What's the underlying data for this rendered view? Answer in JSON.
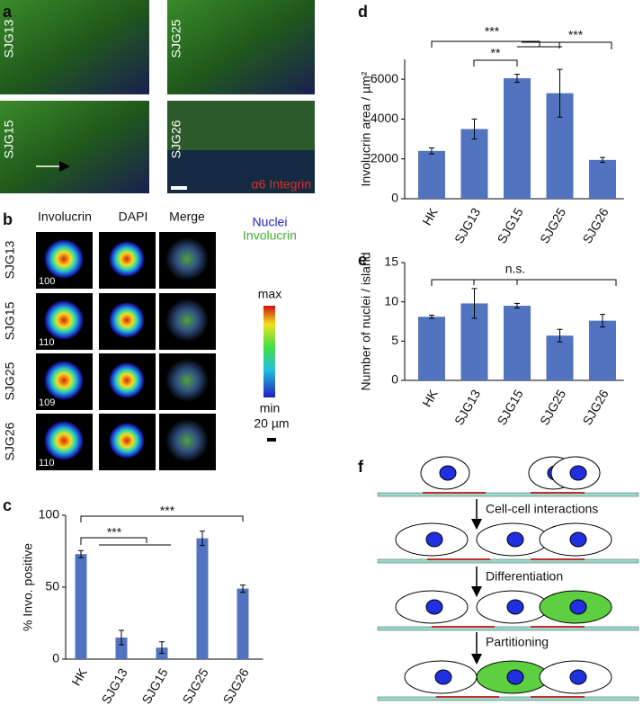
{
  "panel_labels": [
    "a",
    "b",
    "c",
    "d",
    "e",
    "f"
  ],
  "panel_a": {
    "images": [
      "SJG13",
      "SJG25",
      "SJG15",
      "SJG26"
    ],
    "stain": "α6 Integrin"
  },
  "panel_b": {
    "columns": [
      "Involucrin",
      "DAPI",
      "Merge"
    ],
    "rows": [
      "SJG13",
      "SJG15",
      "SJG25",
      "SJG26"
    ],
    "cell_counts": [
      100,
      110,
      109,
      110
    ],
    "legend": [
      "Nuclei",
      "Involucrin"
    ],
    "scale_max": "max",
    "scale_min": "min",
    "scale_bar": "20 µm"
  },
  "panel_f": {
    "steps": [
      "Cell-cell interactions",
      "Differentiation",
      "Partitioning"
    ]
  },
  "chart_data": [
    {
      "type": "bar",
      "y_label": "% Invo. positive",
      "categories": [
        "HK",
        "SJG13",
        "SJG15",
        "SJG25",
        "SJG26"
      ],
      "values": [
        73,
        15,
        8,
        84,
        49
      ],
      "errors": [
        2.5,
        5,
        4,
        5,
        2.5
      ],
      "color": "#5273bf",
      "ylim": [
        0,
        100
      ],
      "yticks": [
        0,
        50,
        100
      ],
      "annotations": [
        "***",
        "***"
      ]
    },
    {
      "type": "bar",
      "y_label": "Involucrin area / µm²",
      "categories": [
        "HK",
        "SJG13",
        "SJG15",
        "SJG25",
        "SJG26"
      ],
      "values": [
        2400,
        3500,
        6050,
        5300,
        1950
      ],
      "errors": [
        150,
        500,
        200,
        1200,
        120
      ],
      "color": "#5273bf",
      "ylim": [
        0,
        7000
      ],
      "yticks": [
        0,
        2000,
        4000,
        6000
      ],
      "annotations": [
        "***",
        "**",
        "***"
      ]
    },
    {
      "type": "bar",
      "y_label": "Number of nuclei / island",
      "categories": [
        "HK",
        "SJG13",
        "SJG15",
        "SJG25",
        "SJG26"
      ],
      "values": [
        8.1,
        9.8,
        9.5,
        5.7,
        7.6
      ],
      "errors": [
        0.2,
        1.9,
        0.3,
        0.8,
        0.8
      ],
      "color": "#5273bf",
      "ylim": [
        0,
        15
      ],
      "yticks": [
        0,
        5,
        10,
        15
      ],
      "annotations": [
        "n.s."
      ]
    }
  ]
}
